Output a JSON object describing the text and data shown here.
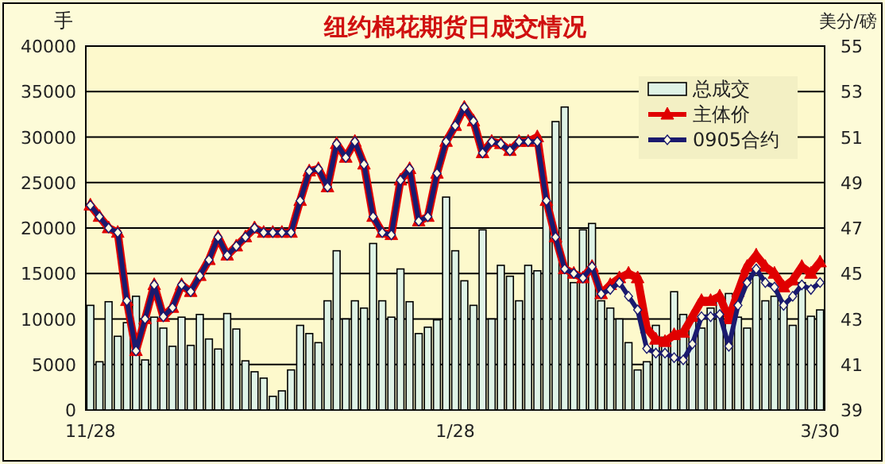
{
  "chart_data": {
    "type": "bar",
    "title": "纽约棉花期货日成交情况",
    "ylabel": "手",
    "y2label": "美分/磅",
    "categories": [
      "11/28",
      null,
      null,
      null,
      null,
      null,
      null,
      null,
      null,
      null,
      null,
      null,
      null,
      null,
      null,
      null,
      null,
      null,
      null,
      null,
      null,
      null,
      null,
      null,
      null,
      null,
      null,
      null,
      null,
      null,
      null,
      null,
      null,
      null,
      null,
      null,
      null,
      null,
      null,
      null,
      "1/28",
      null,
      null,
      null,
      null,
      null,
      null,
      null,
      null,
      null,
      null,
      null,
      null,
      null,
      null,
      null,
      null,
      null,
      null,
      null,
      null,
      null,
      null,
      null,
      null,
      null,
      null,
      null,
      null,
      null,
      null,
      null,
      null,
      null,
      null,
      null,
      null,
      null,
      null,
      null,
      "3/30"
    ],
    "ylim": [
      0,
      40000
    ],
    "yticks": [
      0,
      5000,
      10000,
      15000,
      20000,
      25000,
      30000,
      35000,
      40000
    ],
    "y2lim": [
      39,
      55
    ],
    "y2ticks": [
      39,
      41,
      43,
      45,
      47,
      49,
      51,
      53,
      55
    ],
    "grid": "y",
    "legend": "top right",
    "series": [
      {
        "name": "总成交",
        "color": "#dff3e6",
        "values": [
          11500,
          5300,
          11900,
          8100,
          9600,
          12500,
          5500,
          10200,
          9000,
          7000,
          10200,
          7100,
          10500,
          7800,
          6700,
          10600,
          8900,
          5400,
          4200,
          3500,
          1500,
          2100,
          4400,
          9300,
          8400,
          7400,
          12000,
          17500,
          10000,
          12000,
          11200,
          18300,
          12000,
          10200,
          15500,
          11900,
          8400,
          9100,
          9900,
          23400,
          17500,
          14200,
          11500,
          19800,
          10000,
          15900,
          14700,
          12000,
          15900,
          15300,
          22500,
          31700,
          33300,
          14000,
          19800,
          20500,
          12000,
          11200,
          10000,
          7400,
          4400,
          5300,
          9300,
          8000,
          13000,
          10500,
          10300,
          9000,
          11200,
          12500,
          12800,
          10200,
          9000,
          14800,
          12000,
          12500,
          11600,
          9300,
          14000,
          10300,
          11000
        ]
      },
      {
        "name": "主体价",
        "type": "line",
        "axis": "y2",
        "color": "#e00000",
        "marker": "triangle",
        "values": [
          48.0,
          47.5,
          47.0,
          46.8,
          43.8,
          41.6,
          43.0,
          44.5,
          43.1,
          43.5,
          44.5,
          44.2,
          44.9,
          45.6,
          46.6,
          45.8,
          46.2,
          46.6,
          47.0,
          46.8,
          46.8,
          46.8,
          46.8,
          48.2,
          49.5,
          49.6,
          48.8,
          50.7,
          50.1,
          50.8,
          49.8,
          47.5,
          46.8,
          46.7,
          49.1,
          49.6,
          47.3,
          47.5,
          49.4,
          50.8,
          51.5,
          52.3,
          51.7,
          50.3,
          50.8,
          50.7,
          50.4,
          50.8,
          50.8,
          51.0,
          48.2,
          46.6,
          45.2,
          45.0,
          44.8,
          45.3,
          44.1,
          44.5,
          44.8,
          45.0,
          44.8,
          42.6,
          42.1,
          42.0,
          42.3,
          42.4,
          43.1,
          43.8,
          43.8,
          44.0,
          43.0,
          44.2,
          45.3,
          45.8,
          45.3,
          45.0,
          44.4,
          44.7,
          45.3,
          45.0,
          45.5
        ]
      },
      {
        "name": "0905合约",
        "type": "line",
        "axis": "y2",
        "color": "#1a1a6e",
        "marker": "diamond",
        "values": [
          48.0,
          47.5,
          47.0,
          46.8,
          43.8,
          41.6,
          43.0,
          44.5,
          43.1,
          43.5,
          44.5,
          44.2,
          44.9,
          45.6,
          46.6,
          45.8,
          46.2,
          46.6,
          47.0,
          46.8,
          46.8,
          46.8,
          46.8,
          48.2,
          49.5,
          49.6,
          48.8,
          50.7,
          50.1,
          50.8,
          49.8,
          47.5,
          46.8,
          46.7,
          49.1,
          49.6,
          47.3,
          47.5,
          49.4,
          50.8,
          51.5,
          52.3,
          51.7,
          50.3,
          50.8,
          50.7,
          50.4,
          50.8,
          50.8,
          50.8,
          48.2,
          46.6,
          45.2,
          45.0,
          44.8,
          45.3,
          44.1,
          44.3,
          44.6,
          44.0,
          43.4,
          41.7,
          41.5,
          41.5,
          41.3,
          41.2,
          41.9,
          43.1,
          43.1,
          43.2,
          41.8,
          43.6,
          44.6,
          45.2,
          44.6,
          44.4,
          43.6,
          44.0,
          44.5,
          44.3,
          44.6
        ]
      }
    ]
  }
}
